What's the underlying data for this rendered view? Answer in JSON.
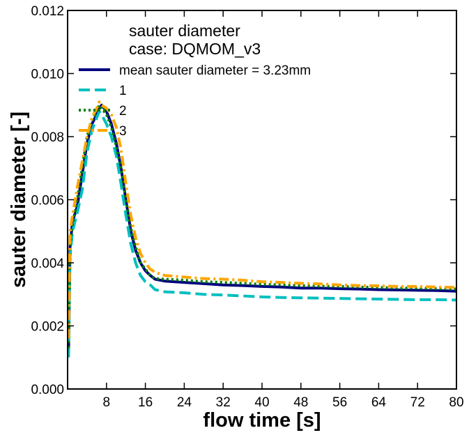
{
  "chart_data": {
    "type": "line",
    "xlabel": "flow time [s]",
    "ylabel": "sauter diameter [-]",
    "xlim": [
      0,
      80
    ],
    "ylim": [
      0.0,
      0.012
    ],
    "xticks": [
      8,
      16,
      24,
      32,
      40,
      48,
      56,
      64,
      72,
      80
    ],
    "xtick_labels": [
      "8",
      "16",
      "24",
      "32",
      "40",
      "48",
      "56",
      "64",
      "72",
      "80"
    ],
    "yticks": [
      0.0,
      0.002,
      0.004,
      0.006,
      0.008,
      0.01,
      0.012
    ],
    "ytick_labels": [
      "0.000",
      "0.002",
      "0.004",
      "0.006",
      "0.008",
      "0.010",
      "0.012"
    ],
    "grid": false,
    "legend_placement": "top-left",
    "legend_title_lines": [
      "sauter diameter",
      "case: DQMOM_v3"
    ],
    "series": [
      {
        "name": "mean sauter diameter = 3.23mm",
        "color": "#000080",
        "style": "solid",
        "x": [
          0.2,
          0.5,
          1,
          2,
          3,
          4,
          5,
          6,
          6.5,
          7,
          8,
          9,
          10,
          11,
          12,
          13,
          14,
          15,
          16,
          17,
          18,
          20,
          24,
          28,
          32,
          36,
          40,
          44,
          48,
          52,
          56,
          60,
          64,
          68,
          72,
          76,
          80
        ],
        "y": [
          0.0012,
          0.0045,
          0.0053,
          0.0058,
          0.0068,
          0.0078,
          0.0084,
          0.0087,
          0.0089,
          0.009,
          0.0088,
          0.0084,
          0.0078,
          0.007,
          0.006,
          0.005,
          0.0044,
          0.004,
          0.00375,
          0.0036,
          0.00348,
          0.00342,
          0.00338,
          0.00334,
          0.0033,
          0.00328,
          0.00325,
          0.00323,
          0.0032,
          0.0032,
          0.00318,
          0.00317,
          0.00315,
          0.00314,
          0.00313,
          0.00312,
          0.0031
        ]
      },
      {
        "name": "1",
        "color": "#00bfbf",
        "style": "dashed",
        "x": [
          0.2,
          0.5,
          1,
          2,
          3,
          4,
          5,
          6,
          6.5,
          7,
          8,
          9,
          10,
          11,
          12,
          13,
          14,
          15,
          16,
          17,
          18,
          20,
          24,
          28,
          32,
          36,
          40,
          44,
          48,
          52,
          56,
          60,
          64,
          68,
          72,
          76,
          80
        ],
        "y": [
          0.001,
          0.0042,
          0.005,
          0.0056,
          0.0063,
          0.0075,
          0.0082,
          0.0086,
          0.0088,
          0.0087,
          0.0084,
          0.008,
          0.0074,
          0.0065,
          0.0055,
          0.0046,
          0.004,
          0.0036,
          0.0034,
          0.0033,
          0.00315,
          0.00308,
          0.00305,
          0.003,
          0.00298,
          0.00295,
          0.00292,
          0.0029,
          0.00289,
          0.00288,
          0.00287,
          0.00286,
          0.00285,
          0.00284,
          0.00283,
          0.00283,
          0.00282
        ]
      },
      {
        "name": "2",
        "color": "#008000",
        "style": "dotted",
        "x": [
          0.2,
          0.5,
          1,
          2,
          3,
          4,
          5,
          6,
          6.5,
          7,
          8,
          9,
          10,
          11,
          12,
          13,
          14,
          15,
          16,
          17,
          18,
          20,
          24,
          28,
          32,
          36,
          40,
          44,
          48,
          52,
          56,
          60,
          64,
          68,
          72,
          76,
          80
        ],
        "y": [
          0.0013,
          0.0045,
          0.0052,
          0.006,
          0.007,
          0.008,
          0.0085,
          0.0088,
          0.009,
          0.0089,
          0.0087,
          0.0083,
          0.0077,
          0.007,
          0.006,
          0.0051,
          0.0045,
          0.004,
          0.0038,
          0.0036,
          0.0035,
          0.00348,
          0.00345,
          0.0034,
          0.00338,
          0.00335,
          0.00332,
          0.0033,
          0.00328,
          0.00326,
          0.00325,
          0.00323,
          0.00322,
          0.0032,
          0.0032,
          0.00318,
          0.00317
        ]
      },
      {
        "name": "3",
        "color": "#ffa500",
        "style": "dashdot",
        "x": [
          0.2,
          0.5,
          1,
          2,
          3,
          4,
          5,
          6,
          6.5,
          7,
          8,
          9,
          10,
          11,
          12,
          13,
          14,
          15,
          16,
          17,
          18,
          20,
          24,
          28,
          32,
          36,
          40,
          44,
          48,
          52,
          56,
          60,
          64,
          68,
          72,
          76,
          80
        ],
        "y": [
          0.0016,
          0.005,
          0.0055,
          0.0064,
          0.0072,
          0.008,
          0.0086,
          0.0089,
          0.0091,
          0.009,
          0.0089,
          0.0087,
          0.0083,
          0.0076,
          0.0065,
          0.0055,
          0.0048,
          0.0043,
          0.004,
          0.0038,
          0.0037,
          0.0036,
          0.00355,
          0.0035,
          0.00348,
          0.00345,
          0.0034,
          0.00338,
          0.00335,
          0.00333,
          0.0033,
          0.00328,
          0.00327,
          0.00325,
          0.00325,
          0.00323,
          0.00322
        ]
      }
    ]
  }
}
